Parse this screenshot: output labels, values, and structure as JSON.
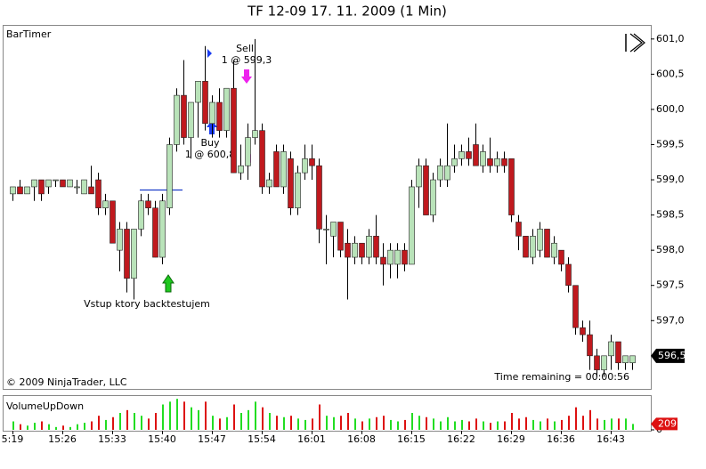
{
  "chart_data": {
    "type": "candlestick",
    "title": "TF 12-09  17. 11. 2009 (1 Min)",
    "indicator": "BarTimer",
    "copyright": "© 2009 NinjaTrader, LLC",
    "time_remaining": "Time remaining = 00:00:56",
    "last_close_label": "596,5",
    "annotations": {
      "sell": "Sell",
      "sell_fill": "1 @ 599,3",
      "buy": "Buy",
      "buy_fill": "1 @ 600,8",
      "entry": "Vstup ktory backtestujem"
    },
    "volume_title": "VolumeUpDown",
    "up_color": "#b9e3b9",
    "down_color": "#c0191e",
    "volume_up_color": "#22dd22",
    "volume_down_color": "#dd1111",
    "categories": [
      "5:19",
      null,
      null,
      null,
      null,
      null,
      null,
      "15:26",
      null,
      null,
      null,
      null,
      null,
      null,
      "15:33",
      null,
      null,
      null,
      null,
      null,
      null,
      "15:40",
      null,
      null,
      null,
      null,
      null,
      null,
      "15:47",
      null,
      null,
      null,
      null,
      null,
      null,
      "15:54",
      null,
      null,
      null,
      null,
      null,
      null,
      "16:01",
      null,
      null,
      null,
      null,
      null,
      null,
      "16:08",
      null,
      null,
      null,
      null,
      null,
      null,
      "16:15",
      null,
      null,
      null,
      null,
      null,
      null,
      "16:22",
      null,
      null,
      null,
      null,
      null,
      null,
      "16:29",
      null,
      null,
      null,
      null,
      null,
      null,
      "16:36",
      null,
      null,
      null,
      null,
      null,
      null,
      "16:43",
      null,
      null,
      null
    ],
    "open": [
      598.8,
      598.9,
      598.8,
      598.9,
      599.0,
      598.9,
      599.0,
      599.0,
      598.9,
      598.9,
      598.8,
      598.9,
      599.0,
      598.6,
      598.7,
      598.0,
      598.3,
      597.6,
      598.3,
      598.7,
      598.6,
      597.9,
      598.6,
      599.5,
      600.2,
      599.6,
      600.1,
      600.4,
      599.8,
      600.1,
      599.7,
      600.3,
      599.1,
      599.2,
      599.6,
      599.7,
      598.9,
      599.4,
      598.9,
      599.3,
      598.6,
      599.1,
      599.3,
      599.2,
      598.3,
      598.2,
      598.4,
      598.1,
      597.9,
      598.1,
      597.9,
      598.2,
      597.9,
      597.8,
      597.8,
      598.0,
      597.8,
      598.9,
      599.2,
      598.5,
      599.0,
      599.0,
      599.2,
      599.3,
      599.4,
      599.5,
      599.2,
      599.3,
      599.2,
      599.3,
      599.3,
      598.4,
      598.2,
      597.9,
      598.0,
      598.3,
      597.9,
      598.0,
      597.8,
      597.5,
      596.9,
      596.8,
      596.5,
      596.3,
      596.5,
      596.7,
      596.4,
      596.4
    ],
    "high": [
      598.9,
      599.0,
      598.9,
      599.0,
      599.0,
      599.0,
      599.0,
      599.0,
      599.0,
      599.0,
      599.0,
      599.2,
      599.1,
      598.8,
      598.7,
      598.4,
      598.4,
      598.3,
      598.8,
      598.8,
      598.7,
      598.8,
      599.6,
      600.3,
      600.7,
      600.1,
      600.4,
      600.9,
      600.2,
      600.3,
      600.3,
      600.7,
      599.5,
      599.8,
      601.0,
      599.8,
      599.1,
      599.5,
      599.5,
      599.4,
      599.2,
      599.5,
      599.5,
      599.3,
      598.5,
      598.4,
      598.4,
      598.3,
      598.2,
      598.1,
      598.3,
      598.5,
      598.1,
      598.1,
      598.1,
      598.1,
      599.0,
      599.3,
      599.3,
      599.1,
      599.3,
      599.8,
      599.5,
      599.5,
      599.6,
      599.8,
      599.5,
      599.6,
      599.4,
      599.4,
      599.3,
      598.5,
      598.2,
      598.3,
      598.4,
      598.3,
      598.2,
      598.0,
      597.9,
      597.5,
      597.0,
      597.0,
      596.6,
      596.5,
      596.8,
      596.7,
      596.5,
      596.5
    ],
    "low": [
      598.7,
      598.8,
      598.8,
      598.7,
      598.7,
      598.8,
      598.9,
      598.9,
      598.9,
      598.8,
      598.8,
      598.8,
      598.5,
      598.5,
      598.1,
      597.7,
      597.4,
      597.3,
      598.2,
      598.5,
      597.9,
      597.8,
      598.5,
      599.4,
      599.5,
      599.3,
      599.6,
      599.7,
      599.6,
      599.6,
      599.6,
      599.1,
      599.0,
      599.0,
      599.5,
      598.8,
      598.8,
      598.9,
      598.8,
      598.5,
      598.5,
      599.0,
      599.0,
      598.1,
      597.8,
      597.9,
      597.9,
      597.3,
      597.8,
      597.8,
      597.8,
      597.8,
      597.5,
      597.6,
      597.6,
      597.7,
      597.8,
      598.6,
      598.5,
      598.4,
      598.9,
      598.9,
      599.1,
      599.2,
      599.2,
      599.2,
      599.1,
      599.1,
      599.1,
      599.1,
      598.4,
      598.0,
      597.9,
      597.8,
      597.9,
      597.9,
      597.8,
      597.7,
      597.4,
      596.8,
      596.7,
      596.3,
      596.2,
      596.2,
      596.3,
      596.3,
      596.3,
      596.3
    ],
    "close": [
      598.9,
      598.8,
      598.9,
      599.0,
      598.8,
      599.0,
      599.0,
      598.9,
      599.0,
      598.9,
      599.0,
      598.8,
      598.6,
      598.7,
      598.1,
      598.3,
      597.6,
      598.3,
      598.7,
      598.6,
      597.9,
      598.7,
      599.5,
      600.2,
      599.6,
      600.1,
      600.4,
      599.8,
      600.1,
      599.7,
      600.3,
      599.1,
      599.2,
      599.6,
      599.7,
      598.9,
      599.0,
      598.9,
      599.4,
      598.6,
      599.1,
      599.3,
      599.2,
      598.3,
      598.3,
      598.4,
      598.0,
      597.9,
      598.1,
      597.9,
      598.2,
      597.9,
      597.8,
      598.0,
      598.0,
      597.8,
      598.9,
      599.2,
      598.5,
      599.0,
      599.2,
      599.2,
      599.3,
      599.4,
      599.3,
      599.2,
      599.4,
      599.2,
      599.3,
      599.2,
      598.5,
      598.2,
      597.9,
      598.2,
      598.3,
      597.9,
      598.1,
      597.8,
      597.5,
      596.9,
      596.8,
      596.5,
      596.3,
      596.5,
      596.7,
      596.4,
      596.5,
      596.5
    ],
    "volume": [
      300,
      200,
      150,
      250,
      300,
      200,
      100,
      150,
      100,
      200,
      250,
      300,
      500,
      350,
      450,
      600,
      700,
      600,
      500,
      400,
      600,
      900,
      1000,
      1100,
      1000,
      800,
      700,
      1000,
      500,
      400,
      450,
      900,
      600,
      700,
      1000,
      800,
      600,
      500,
      450,
      500,
      400,
      350,
      400,
      900,
      500,
      450,
      500,
      600,
      400,
      300,
      400,
      450,
      500,
      350,
      300,
      350,
      600,
      500,
      450,
      400,
      300,
      450,
      300,
      350,
      300,
      400,
      300,
      250,
      300,
      300,
      600,
      400,
      450,
      350,
      300,
      400,
      300,
      350,
      500,
      800,
      500,
      700,
      400,
      350,
      400,
      400,
      400,
      209
    ],
    "ylim": [
      596.03,
      601.2
    ],
    "yticks": [
      {
        "value": 597.0,
        "label": "597,0"
      },
      {
        "value": 597.5,
        "label": "597,5"
      },
      {
        "value": 598.0,
        "label": "598,0"
      },
      {
        "value": 598.5,
        "label": "598,5"
      },
      {
        "value": 599.0,
        "label": "599,0"
      },
      {
        "value": 599.5,
        "label": "599,5"
      },
      {
        "value": 600.0,
        "label": "600,0"
      },
      {
        "value": 600.5,
        "label": "600,5"
      },
      {
        "value": 601.0,
        "label": "601,0"
      }
    ],
    "y2lim": [
      0,
      1200
    ],
    "y2ticks": [
      0
    ]
  }
}
